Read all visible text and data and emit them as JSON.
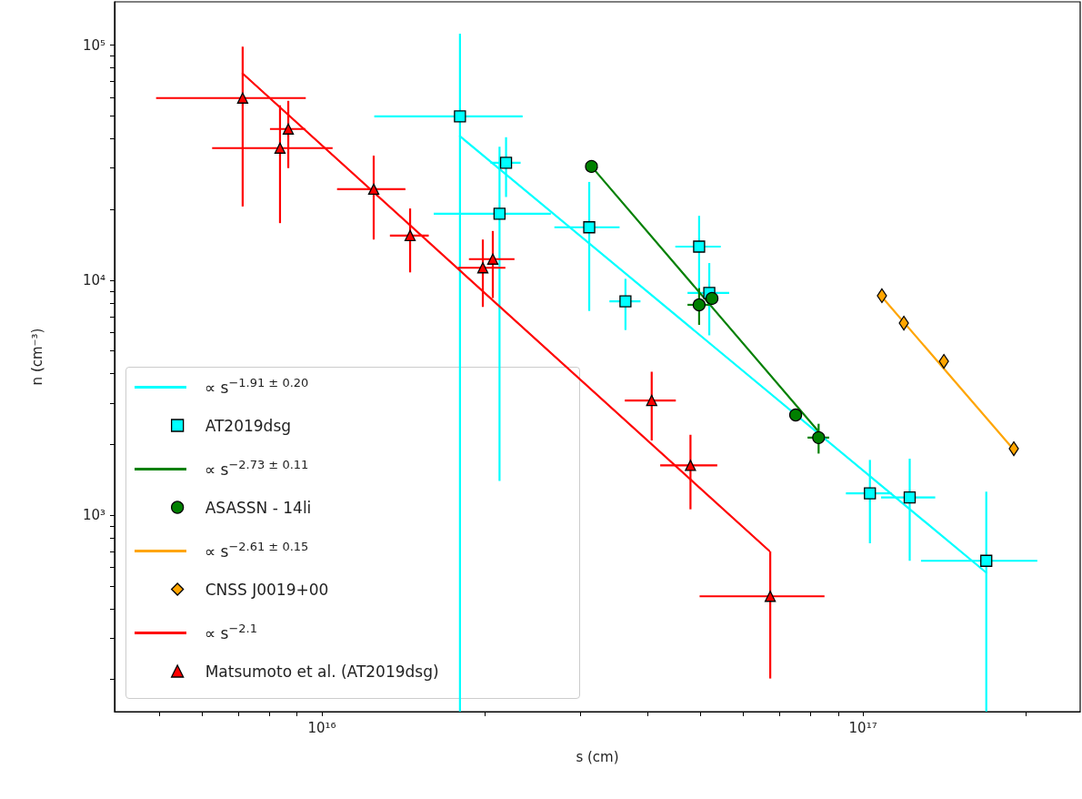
{
  "chart_data": {
    "type": "scatter",
    "xlabel": "s (cm)",
    "ylabel": "n (cm⁻³)",
    "log": "xy",
    "legend": "bottom left",
    "xlim": [
      4140000000000000.0,
      2.52e+17
    ],
    "ylim": [
      146,
      153000
    ],
    "xticks": [
      {
        "value": 5000000000000000.0,
        "label": null
      },
      {
        "value": 6000000000000000.0,
        "label": null
      },
      {
        "value": 7000000000000000.0,
        "label": null
      },
      {
        "value": 8000000000000000.0,
        "label": null
      },
      {
        "value": 9000000000000000.0,
        "label": null
      },
      {
        "value": 1e+16,
        "label": "10¹⁶"
      },
      {
        "value": 2e+16,
        "label": null
      },
      {
        "value": 3e+16,
        "label": null
      },
      {
        "value": 4e+16,
        "label": null
      },
      {
        "value": 5e+16,
        "label": null
      },
      {
        "value": 6e+16,
        "label": null
      },
      {
        "value": 7e+16,
        "label": null
      },
      {
        "value": 8e+16,
        "label": null
      },
      {
        "value": 9e+16,
        "label": null
      },
      {
        "value": 1e+17,
        "label": "10¹⁷"
      },
      {
        "value": 2e+17,
        "label": null
      }
    ],
    "yticks": [
      {
        "value": 200,
        "label": null
      },
      {
        "value": 300,
        "label": null
      },
      {
        "value": 400,
        "label": null
      },
      {
        "value": 500,
        "label": null
      },
      {
        "value": 600,
        "label": null
      },
      {
        "value": 700,
        "label": null
      },
      {
        "value": 800,
        "label": null
      },
      {
        "value": 900,
        "label": null
      },
      {
        "value": 1000,
        "label": "10³"
      },
      {
        "value": 2000,
        "label": null
      },
      {
        "value": 3000,
        "label": null
      },
      {
        "value": 4000,
        "label": null
      },
      {
        "value": 5000,
        "label": null
      },
      {
        "value": 6000,
        "label": null
      },
      {
        "value": 7000,
        "label": null
      },
      {
        "value": 8000,
        "label": null
      },
      {
        "value": 9000,
        "label": null
      },
      {
        "value": 10000,
        "label": "10⁴"
      },
      {
        "value": 20000,
        "label": null
      },
      {
        "value": 30000,
        "label": null
      },
      {
        "value": 40000,
        "label": null
      },
      {
        "value": 50000,
        "label": null
      },
      {
        "value": 60000,
        "label": null
      },
      {
        "value": 70000,
        "label": null
      },
      {
        "value": 80000,
        "label": null
      },
      {
        "value": 90000,
        "label": null
      },
      {
        "value": 100000,
        "label": "10⁵"
      }
    ],
    "series": [
      {
        "type": "line",
        "name": "∝ s$^{−1.91 ± 0.20}$",
        "color": "#00ffff",
        "marker": "none",
        "x": [
          1.8e+16,
          1.69e+17
        ],
        "values": [
          41000,
          570
        ]
      },
      {
        "name": "AT2019dsg",
        "color": "#00ffff",
        "marker": "square",
        "x": [
          1.8e+16,
          2.19e+16,
          2.13e+16,
          3.12e+16,
          3.64e+16,
          4.98e+16,
          5.2e+16,
          1.03e+17,
          1.22e+17,
          1.69e+17
        ],
        "values": [
          49800,
          31600,
          19200,
          16800,
          8140,
          13900,
          8830,
          1240,
          1190,
          640
        ],
        "errors": [
          [
            146,
            112000
          ],
          9000,
          17800,
          9400,
          2000,
          4900,
          3000,
          480,
          550,
          [
            146,
            1260
          ]
        ],
        "xerrors": [
          5500000000000000.0,
          1400000000000000.0,
          5200000000000000.0,
          4300000000000000.0,
          2400000000000000.0,
          4800000000000000.0,
          4600000000000000.0,
          1e+16,
          1.4e+16,
          4.1e+16
        ]
      },
      {
        "type": "line",
        "name": "∝ s$^{−2.73 ± 0.11}$",
        "color": "#008000",
        "marker": "none",
        "x": [
          3.15e+16,
          8.28e+16
        ],
        "values": [
          30500,
          2270
        ]
      },
      {
        "name": "ASASSN - 14li",
        "color": "#008000",
        "marker": "circle",
        "x": [
          3.15e+16,
          4.98e+16,
          5.26e+16,
          7.51e+16,
          8.28e+16
        ],
        "values": [
          30500,
          7860,
          8370,
          2670,
          2140
        ],
        "errors": [
          null,
          1400,
          null,
          null,
          310
        ],
        "xerrors": [
          null,
          2400000000000000.0,
          null,
          null,
          3800000000000000.0
        ]
      },
      {
        "type": "line",
        "name": "∝ s$^{−2.61 ± 0.15}$",
        "color": "#ffa500",
        "marker": "none",
        "x": [
          1.084e+17,
          1.9e+17
        ],
        "values": [
          8500,
          1900
        ]
      },
      {
        "name": "CNSS J0019+00",
        "color": "#ffa500",
        "marker": "diamond",
        "x": [
          1.084e+17,
          1.19e+17,
          1.411e+17,
          1.9e+17
        ],
        "values": [
          8590,
          6570,
          4520,
          1920
        ]
      },
      {
        "type": "line",
        "name": "∝ s$^{−2.1}$",
        "color": "#ff0000",
        "marker": "none",
        "x": [
          7140000000000000.0,
          6.71e+16
        ],
        "values": [
          75800,
          706
        ]
      },
      {
        "name": "Matsumoto et al. (AT2019dsg)",
        "color": "#ff0000",
        "marker": "triangle",
        "x": [
          7140000000000000.0,
          8370000000000000.0,
          8670000000000000.0,
          1.247e+16,
          1.456e+16,
          1.984e+16,
          2.07e+16,
          4.07e+16,
          4.8e+16,
          6.74e+16
        ],
        "values": [
          59600,
          36500,
          44000,
          24400,
          15500,
          11300,
          12300,
          3080,
          1630,
          452
        ],
        "errors": [
          39000,
          19000,
          14000,
          9500,
          4700,
          3600,
          3900,
          1000,
          570,
          250
        ],
        "xerrors": [
          2200000000000000.0,
          2100000000000000.0,
          650000000000000.0,
          1800000000000000.0,
          1200000000000000.0,
          2000000000000000.0,
          2000000000000000.0,
          4400000000000000.0,
          5800000000000000.0,
          1.75e+16
        ]
      }
    ]
  }
}
